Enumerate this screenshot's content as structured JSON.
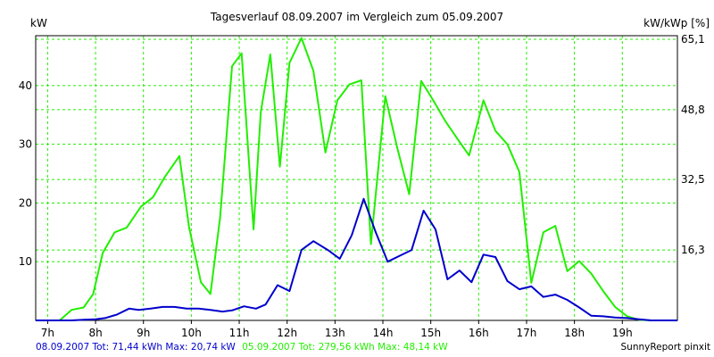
{
  "chart_data": {
    "type": "line",
    "title": "Tagesverlauf 08.09.2007 im Vergleich zum 05.09.2007",
    "ylabel_left": "kW",
    "ylabel_right": "kW/kWp [%]",
    "xlim": [
      6.75,
      20.15
    ],
    "ylim": [
      0,
      48.5
    ],
    "grid": true,
    "x_ticks": [
      {
        "value": 7,
        "label": "7h"
      },
      {
        "value": 8,
        "label": "8h"
      },
      {
        "value": 9,
        "label": "9h"
      },
      {
        "value": 10,
        "label": "10h"
      },
      {
        "value": 11,
        "label": "11h"
      },
      {
        "value": 12,
        "label": "12h"
      },
      {
        "value": 13,
        "label": "13h"
      },
      {
        "value": 14,
        "label": "14h"
      },
      {
        "value": 15,
        "label": "15h"
      },
      {
        "value": 16,
        "label": "16h"
      },
      {
        "value": 17,
        "label": "17h"
      },
      {
        "value": 18,
        "label": "18h"
      },
      {
        "value": 19,
        "label": "19h"
      }
    ],
    "y_ticks_left": [
      {
        "value": 10,
        "label": "10"
      },
      {
        "value": 20,
        "label": "20"
      },
      {
        "value": 30,
        "label": "30"
      },
      {
        "value": 40,
        "label": "40"
      }
    ],
    "y_ticks_right": [
      {
        "value": 12.0,
        "label": "16,3"
      },
      {
        "value": 24.0,
        "label": "32,5"
      },
      {
        "value": 35.9,
        "label": "48,8"
      },
      {
        "value": 47.9,
        "label": "65,1"
      }
    ],
    "series": [
      {
        "name": "05.09.2007",
        "color": "#22ee00",
        "x": [
          6.75,
          7.25,
          7.5,
          7.75,
          7.95,
          8.15,
          8.4,
          8.65,
          8.95,
          9.2,
          9.45,
          9.75,
          9.95,
          10.2,
          10.4,
          10.6,
          10.85,
          11.05,
          11.3,
          11.45,
          11.65,
          11.85,
          12.05,
          12.3,
          12.55,
          12.8,
          13.05,
          13.3,
          13.55,
          13.75,
          14.05,
          14.3,
          14.55,
          14.8,
          15.05,
          15.3,
          15.55,
          15.8,
          16.1,
          16.35,
          16.6,
          16.85,
          17.1,
          17.35,
          17.6,
          17.85,
          18.1,
          18.35,
          18.6,
          18.85,
          19.1,
          19.35,
          19.6,
          19.85,
          20.15
        ],
        "y": [
          0,
          0,
          1.8,
          2.2,
          4.5,
          11.5,
          15,
          15.8,
          19.4,
          21,
          24.5,
          28,
          16,
          6.5,
          4.5,
          17.5,
          43.3,
          45.5,
          15.5,
          35.5,
          45.3,
          26.2,
          43.9,
          48.1,
          42.5,
          28.6,
          37.5,
          40.2,
          40.9,
          13,
          38.2,
          29.4,
          21.5,
          40.8,
          37.5,
          34,
          31,
          28.1,
          37.5,
          32.3,
          30,
          25.3,
          6.4,
          15,
          16.1,
          8.4,
          10.1,
          8,
          5,
          2.3,
          0.7,
          0.1,
          0,
          0,
          0
        ]
      },
      {
        "name": "08.09.2007",
        "color": "#0000cc",
        "x": [
          6.75,
          7.5,
          7.75,
          8.0,
          8.2,
          8.45,
          8.7,
          8.9,
          9.15,
          9.4,
          9.65,
          9.9,
          10.15,
          10.4,
          10.65,
          10.85,
          11.1,
          11.35,
          11.55,
          11.8,
          12.05,
          12.3,
          12.55,
          12.85,
          13.1,
          13.35,
          13.6,
          13.85,
          14.1,
          14.35,
          14.6,
          14.85,
          15.1,
          15.35,
          15.6,
          15.85,
          16.1,
          16.35,
          16.6,
          16.85,
          17.1,
          17.35,
          17.6,
          17.85,
          18.1,
          18.35,
          18.6,
          18.85,
          19.1,
          19.35,
          19.6,
          20.15
        ],
        "y": [
          0,
          0,
          0.1,
          0.2,
          0.4,
          1.0,
          2.0,
          1.8,
          2.0,
          2.3,
          2.3,
          2.0,
          2.0,
          1.8,
          1.5,
          1.7,
          2.4,
          2.0,
          2.7,
          6.0,
          5.0,
          12.0,
          13.5,
          12.0,
          10.5,
          14.5,
          20.7,
          15.0,
          10.0,
          11.0,
          12.0,
          18.7,
          15.5,
          7.0,
          8.5,
          6.5,
          11.2,
          10.8,
          6.7,
          5.3,
          5.8,
          4.0,
          4.4,
          3.5,
          2.2,
          0.8,
          0.7,
          0.5,
          0.4,
          0.2,
          0,
          0
        ]
      }
    ]
  },
  "footer": {
    "series_blue_summary": "08.09.2007 Tot: 71,44 kWh Max: 20,74 kW",
    "series_green_summary": "05.09.2007 Tot: 279,56 kWh Max: 48,14 kW",
    "credit": "SunnyReport pinxit"
  },
  "colors": {
    "grid": "#22ee00",
    "axis": "#000000",
    "footer_blue": "#0000cc",
    "footer_green": "#22ee00"
  }
}
